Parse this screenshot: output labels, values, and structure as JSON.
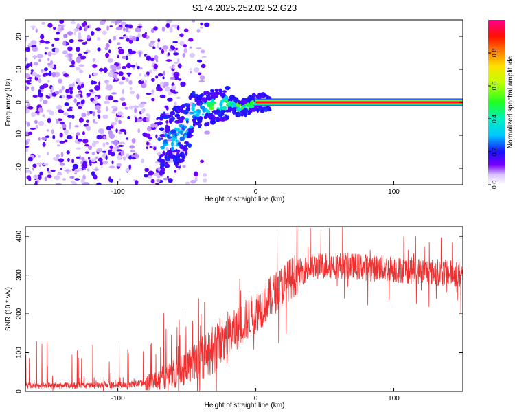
{
  "title": "S174.2025.252.02.52.G23",
  "chart_data": [
    {
      "type": "heatmap",
      "xlabel": "Height of straight line (km)",
      "ylabel": "Frequency (Hz)",
      "xlim": [
        -167,
        150
      ],
      "ylim": [
        -25,
        25
      ],
      "x_ticks": [
        -100,
        0,
        100
      ],
      "y_ticks": [
        -20,
        -10,
        0,
        10,
        20
      ],
      "colorbar": {
        "label": "Normalized spectral amplitude",
        "range": [
          0,
          1
        ],
        "ticks": [
          "0.0",
          "0.2",
          "0.4",
          "0.6",
          "0.8"
        ],
        "ticks_values": [
          0,
          0.2,
          0.4,
          0.6,
          0.8
        ]
      },
      "features": {
        "noise_region_x": [
          -167,
          -50
        ],
        "noise_region_amplitude": 0.1,
        "signal_line_x": [
          0,
          150
        ],
        "signal_line_freq": 0,
        "signal_line_amplitude": 0.95,
        "transition_region_x": [
          -70,
          10
        ],
        "transition_center_path": [
          [
            -70,
            -13
          ],
          [
            -55,
            -10
          ],
          [
            -45,
            -3
          ],
          [
            -30,
            -1
          ],
          [
            -20,
            0
          ],
          [
            -10,
            -2
          ],
          [
            0,
            0
          ]
        ]
      }
    },
    {
      "type": "line",
      "xlabel": "Height of straight line (km)",
      "ylabel": "SNR (10 * v/v)",
      "xlim": [
        -167,
        150
      ],
      "ylim": [
        0,
        425
      ],
      "x_ticks": [
        -100,
        0,
        100
      ],
      "y_ticks": [
        0,
        100,
        200,
        300,
        400
      ],
      "series": [
        {
          "name": "SNR",
          "color": "#f03030",
          "trend": [
            [
              -167,
              15
            ],
            [
              -120,
              15
            ],
            [
              -90,
              18
            ],
            [
              -75,
              25
            ],
            [
              -60,
              45
            ],
            [
              -50,
              65
            ],
            [
              -40,
              85
            ],
            [
              -30,
              110
            ],
            [
              -20,
              140
            ],
            [
              -10,
              175
            ],
            [
              0,
              205
            ],
            [
              10,
              240
            ],
            [
              20,
              275
            ],
            [
              30,
              305
            ],
            [
              40,
              320
            ],
            [
              50,
              325
            ],
            [
              60,
              325
            ],
            [
              80,
              320
            ],
            [
              100,
              315
            ],
            [
              120,
              310
            ],
            [
              140,
              305
            ],
            [
              150,
              300
            ]
          ]
        }
      ]
    }
  ]
}
